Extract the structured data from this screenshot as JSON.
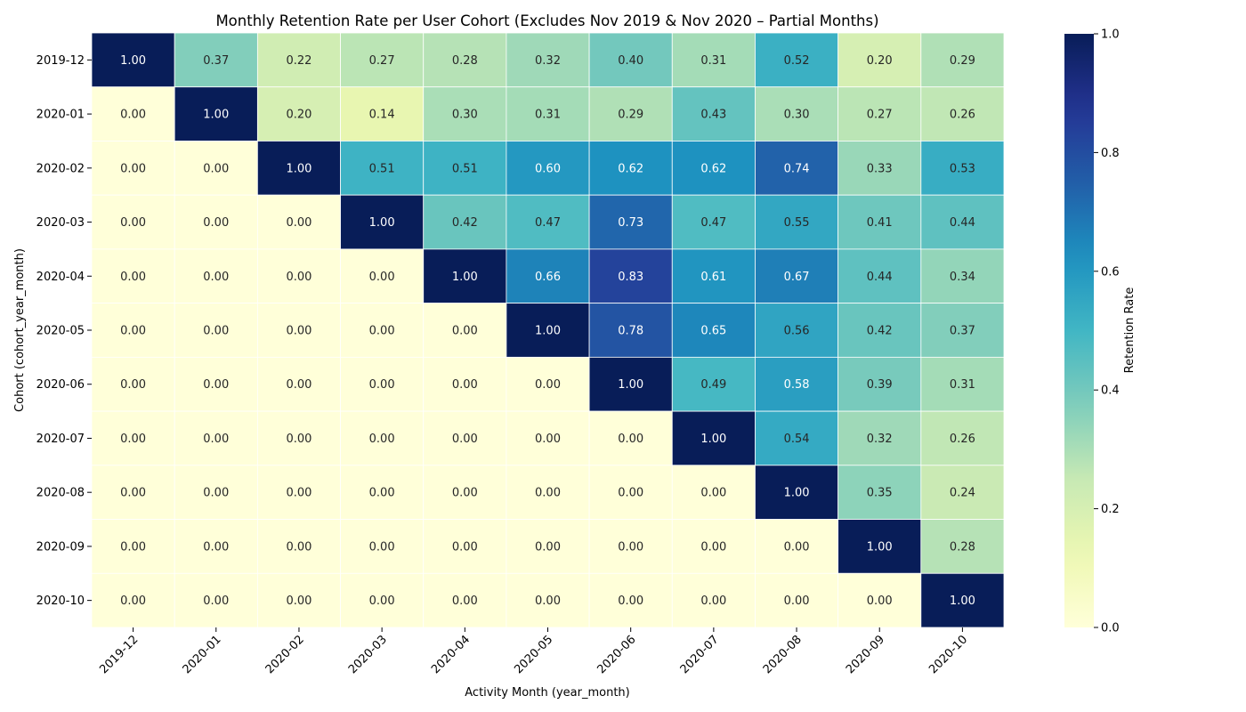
{
  "chart_data": {
    "type": "heatmap",
    "title": "Monthly Retention Rate per User Cohort (Excludes Nov 2019 & Nov 2020 – Partial Months)",
    "xlabel": "Activity Month (year_month)",
    "ylabel": "Cohort (cohort_year_month)",
    "x_categories": [
      "2019-12",
      "2020-01",
      "2020-02",
      "2020-03",
      "2020-04",
      "2020-05",
      "2020-06",
      "2020-07",
      "2020-08",
      "2020-09",
      "2020-10"
    ],
    "y_categories": [
      "2019-12",
      "2020-01",
      "2020-02",
      "2020-03",
      "2020-04",
      "2020-05",
      "2020-06",
      "2020-07",
      "2020-08",
      "2020-09",
      "2020-10"
    ],
    "values": [
      [
        1.0,
        0.37,
        0.22,
        0.27,
        0.28,
        0.32,
        0.4,
        0.31,
        0.52,
        0.2,
        0.29
      ],
      [
        0.0,
        1.0,
        0.2,
        0.14,
        0.3,
        0.31,
        0.29,
        0.43,
        0.3,
        0.27,
        0.26
      ],
      [
        0.0,
        0.0,
        1.0,
        0.51,
        0.51,
        0.6,
        0.62,
        0.62,
        0.74,
        0.33,
        0.53
      ],
      [
        0.0,
        0.0,
        0.0,
        1.0,
        0.42,
        0.47,
        0.73,
        0.47,
        0.55,
        0.41,
        0.44
      ],
      [
        0.0,
        0.0,
        0.0,
        0.0,
        1.0,
        0.66,
        0.83,
        0.61,
        0.67,
        0.44,
        0.34
      ],
      [
        0.0,
        0.0,
        0.0,
        0.0,
        0.0,
        1.0,
        0.78,
        0.65,
        0.56,
        0.42,
        0.37
      ],
      [
        0.0,
        0.0,
        0.0,
        0.0,
        0.0,
        0.0,
        1.0,
        0.49,
        0.58,
        0.39,
        0.31
      ],
      [
        0.0,
        0.0,
        0.0,
        0.0,
        0.0,
        0.0,
        0.0,
        1.0,
        0.54,
        0.32,
        0.26
      ],
      [
        0.0,
        0.0,
        0.0,
        0.0,
        0.0,
        0.0,
        0.0,
        0.0,
        1.0,
        0.35,
        0.24
      ],
      [
        0.0,
        0.0,
        0.0,
        0.0,
        0.0,
        0.0,
        0.0,
        0.0,
        0.0,
        1.0,
        0.28
      ],
      [
        0.0,
        0.0,
        0.0,
        0.0,
        0.0,
        0.0,
        0.0,
        0.0,
        0.0,
        0.0,
        1.0
      ]
    ],
    "value_format": "0.00",
    "colormap": "YlGnBu",
    "vmin": 0.0,
    "vmax": 1.0,
    "colorbar": {
      "label": "Retention Rate",
      "ticks": [
        "0.0",
        "0.2",
        "0.4",
        "0.6",
        "0.8",
        "1.0"
      ]
    },
    "grid": false,
    "cell_border_color": "#ffffff"
  }
}
